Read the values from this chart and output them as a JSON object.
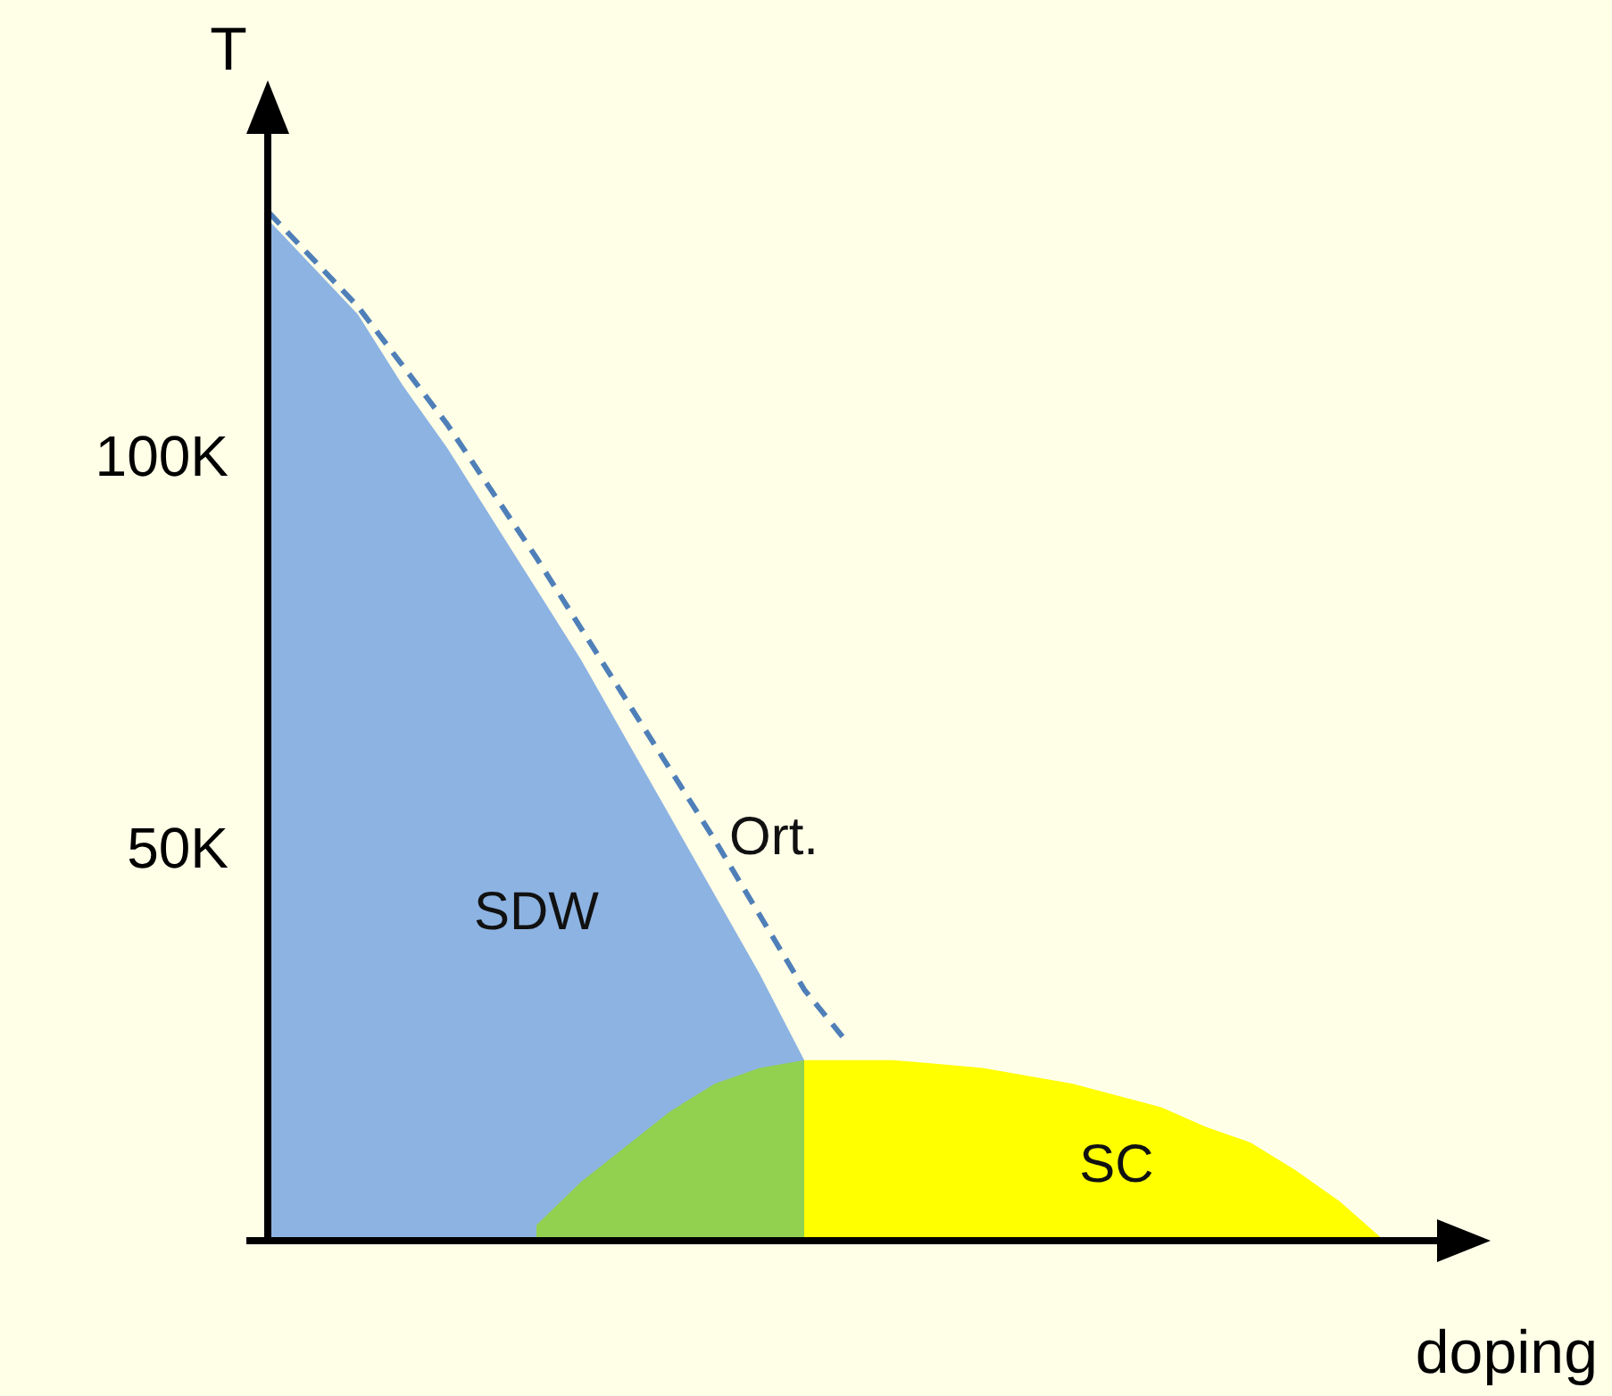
{
  "chart_data": {
    "type": "area",
    "xlabel": "doping",
    "ylabel": "T",
    "categories": [
      null,
      null,
      null,
      null,
      null,
      null,
      null,
      null,
      null,
      null,
      null,
      null,
      null,
      null,
      null,
      null,
      null,
      null,
      null,
      null,
      null,
      null,
      null,
      null,
      null,
      null,
      null
    ],
    "ylim": [
      0,
      146
    ],
    "yticks": [
      {
        "value": 50,
        "label": "50K"
      },
      {
        "value": 100,
        "label": "100K"
      }
    ],
    "series": [
      {
        "name": "SDW",
        "color": "#8db3e2",
        "values": [
          130,
          124,
          118,
          109,
          101,
          92,
          83,
          74,
          64,
          54,
          44,
          34,
          23,
          null,
          null,
          null,
          null,
          null,
          null,
          null,
          null,
          null,
          null,
          null,
          null,
          null,
          null
        ]
      },
      {
        "color": "#92d050",
        "values": [
          null,
          null,
          null,
          null,
          null,
          null,
          2,
          7.5,
          12,
          16.5,
          20,
          22,
          23,
          null,
          null,
          null,
          null,
          null,
          null,
          null,
          null,
          null,
          null,
          null,
          null,
          null,
          null
        ]
      },
      {
        "name": "SC",
        "color": "#ffff00",
        "values": [
          null,
          null,
          null,
          null,
          null,
          null,
          null,
          null,
          null,
          null,
          null,
          null,
          23,
          23,
          23,
          22.5,
          22,
          21,
          20,
          18.5,
          17,
          14.5,
          12.5,
          9,
          5,
          0,
          null
        ]
      },
      {
        "name": "Ort.",
        "type": "line",
        "line_style": "dashed",
        "color": "#4f7fb8",
        "values": [
          131,
          125,
          119,
          111.5,
          104,
          95.5,
          87,
          78,
          69,
          60,
          51,
          41.5,
          32,
          25,
          null,
          null,
          null,
          null,
          null,
          null,
          null,
          null,
          null,
          null,
          null,
          null,
          null
        ]
      }
    ]
  }
}
